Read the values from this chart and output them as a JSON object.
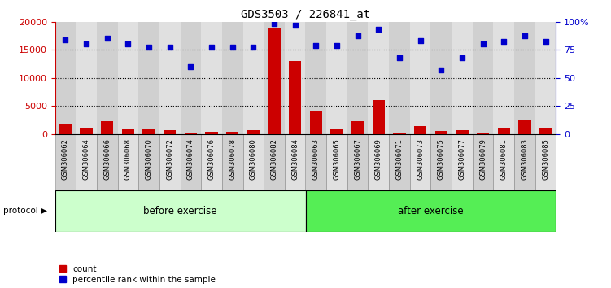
{
  "title": "GDS3503 / 226841_at",
  "categories": [
    "GSM306062",
    "GSM306064",
    "GSM306066",
    "GSM306068",
    "GSM306070",
    "GSM306072",
    "GSM306074",
    "GSM306076",
    "GSM306078",
    "GSM306080",
    "GSM306082",
    "GSM306084",
    "GSM306063",
    "GSM306065",
    "GSM306067",
    "GSM306069",
    "GSM306071",
    "GSM306073",
    "GSM306075",
    "GSM306077",
    "GSM306079",
    "GSM306081",
    "GSM306083",
    "GSM306085"
  ],
  "counts": [
    1700,
    1100,
    2200,
    1000,
    800,
    600,
    300,
    400,
    400,
    600,
    18800,
    13000,
    4200,
    1000,
    2200,
    6000,
    200,
    1400,
    500,
    700,
    200,
    1100,
    2500,
    1100
  ],
  "percentile_ranks": [
    84,
    80,
    85,
    80,
    77,
    77,
    60,
    77,
    77,
    77,
    98,
    97,
    79,
    79,
    87,
    93,
    68,
    83,
    57,
    68,
    80,
    82,
    87,
    82
  ],
  "before_exercise_count": 12,
  "after_exercise_count": 12,
  "ylim_left": [
    0,
    20000
  ],
  "ylim_right": [
    0,
    100
  ],
  "yticks_left": [
    0,
    5000,
    10000,
    15000,
    20000
  ],
  "yticks_right": [
    0,
    25,
    50,
    75,
    100
  ],
  "bar_color": "#cc0000",
  "scatter_color": "#0000cc",
  "before_color": "#ccffcc",
  "after_color": "#55ee55",
  "col_bg_even": "#d0d0d0",
  "col_bg_odd": "#e0e0e0",
  "grid_color": "#000000",
  "protocol_label": "protocol",
  "before_label": "before exercise",
  "after_label": "after exercise",
  "legend_count": "count",
  "legend_pct": "percentile rank within the sample",
  "background_color": "#ffffff",
  "left_axis_color": "#cc0000",
  "right_axis_color": "#0000cc"
}
